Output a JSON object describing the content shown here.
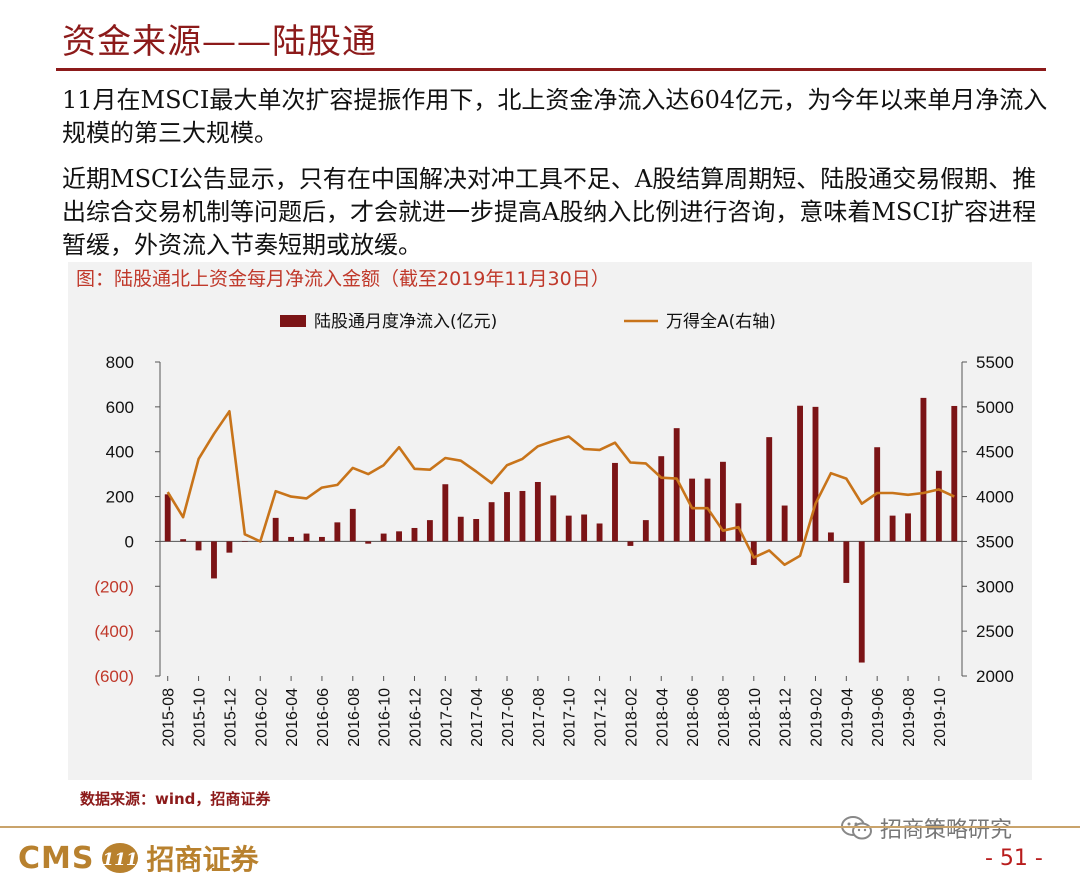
{
  "header": {
    "title": "资金来源——陆股通"
  },
  "paragraphs": [
    "11月在MSCI最大单次扩容提振作用下，北上资金净流入达604亿元，为今年以来单月净流入规模的第三大规模。",
    "近期MSCI公告显示，只有在中国解决对冲工具不足、A股结算周期短、陆股通交易假期、推出综合交易机制等问题后，才会就进一步提高A股纳入比例进行咨询，意味着MSCI扩容进程暂缓，外资流入节奏短期或放缓。"
  ],
  "chart_caption": "图：陆股通北上资金每月净流入金额（截至2019年11月30日）",
  "source": "数据来源：wind，招商证券",
  "watermark": "招商策略研究",
  "footer": {
    "logo_text": "CMS",
    "logo_badge": "111",
    "company": "招商证券",
    "page": "- 51 -"
  },
  "colors": {
    "bar": "#7b1416",
    "line": "#c8741a",
    "title": "#8c1a1a",
    "negative_tick": "#c0392b"
  },
  "chart_data": {
    "type": "bar+line",
    "title": "",
    "categories": [
      "2015-08",
      "2015-09",
      "2015-10",
      "2015-11",
      "2015-12",
      "2016-01",
      "2016-02",
      "2016-03",
      "2016-04",
      "2016-05",
      "2016-06",
      "2016-07",
      "2016-08",
      "2016-09",
      "2016-10",
      "2016-11",
      "2016-12",
      "2017-01",
      "2017-02",
      "2017-03",
      "2017-04",
      "2017-05",
      "2017-06",
      "2017-07",
      "2017-08",
      "2017-09",
      "2017-10",
      "2017-11",
      "2017-12",
      "2018-01",
      "2018-02",
      "2018-03",
      "2018-04",
      "2018-05",
      "2018-06",
      "2018-07",
      "2018-08",
      "2018-09",
      "2018-10",
      "2018-11",
      "2018-12",
      "2019-01",
      "2019-02",
      "2019-03",
      "2019-04",
      "2019-05",
      "2019-06",
      "2019-07",
      "2019-08",
      "2019-09",
      "2019-10",
      "2019-11"
    ],
    "x_tick_labels": [
      "2015-08",
      "2015-10",
      "2015-12",
      "2016-02",
      "2016-04",
      "2016-06",
      "2016-08",
      "2016-10",
      "2016-12",
      "2017-02",
      "2017-04",
      "2017-06",
      "2017-08",
      "2017-10",
      "2017-12",
      "2018-02",
      "2018-04",
      "2018-06",
      "2018-08",
      "2018-10",
      "2018-12",
      "2019-02",
      "2019-04",
      "2019-06",
      "2019-08",
      "2019-10"
    ],
    "series": [
      {
        "name": "陆股通月度净流入(亿元)",
        "type": "bar",
        "axis": "left",
        "values": [
          210,
          10,
          -40,
          -165,
          -50,
          0,
          0,
          105,
          20,
          35,
          20,
          85,
          145,
          -10,
          35,
          45,
          60,
          95,
          255,
          110,
          100,
          175,
          220,
          225,
          265,
          205,
          115,
          120,
          80,
          350,
          -20,
          95,
          380,
          505,
          280,
          280,
          355,
          170,
          -105,
          465,
          160,
          605,
          600,
          40,
          -185,
          -540,
          420,
          115,
          125,
          640,
          315,
          604
        ]
      },
      {
        "name": "万得全A(右轴)",
        "type": "line",
        "axis": "right",
        "values": [
          4050,
          3770,
          4420,
          4700,
          4950,
          3580,
          3500,
          4060,
          4000,
          3980,
          4100,
          4130,
          4320,
          4250,
          4350,
          4550,
          4310,
          4300,
          4430,
          4400,
          4280,
          4150,
          4350,
          4420,
          4560,
          4620,
          4670,
          4530,
          4520,
          4600,
          4380,
          4370,
          4210,
          4200,
          3870,
          3870,
          3620,
          3660,
          3320,
          3400,
          3240,
          3340,
          3920,
          4260,
          4200,
          3920,
          4040,
          4040,
          4020,
          4040,
          4080,
          4000
        ]
      }
    ],
    "y_left": {
      "min": -600,
      "max": 800,
      "ticks": [
        800,
        600,
        400,
        200,
        0,
        -200,
        -400,
        -600
      ],
      "tick_labels": [
        "800",
        "600",
        "400",
        "200",
        "0",
        "(200)",
        "(400)",
        "(600)"
      ]
    },
    "y_right": {
      "min": 2000,
      "max": 5500,
      "ticks": [
        5500,
        5000,
        4500,
        4000,
        3500,
        3000,
        2500,
        2000
      ],
      "tick_labels": [
        "5500",
        "5000",
        "4500",
        "4000",
        "3500",
        "3000",
        "2500",
        "2000"
      ]
    },
    "legend_position": "top-center",
    "grid": false
  }
}
